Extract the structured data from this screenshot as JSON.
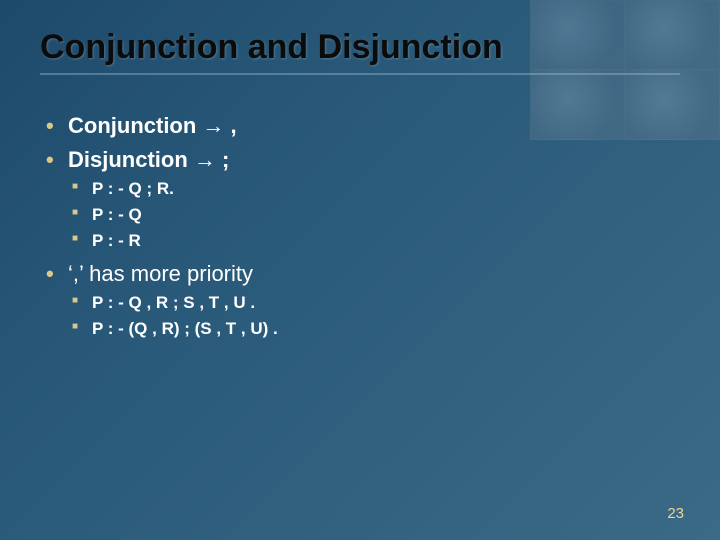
{
  "slide": {
    "title": "Conjunction and Disjunction",
    "page_number": "23",
    "colors": {
      "background_gradient_from": "#1e4a6a",
      "background_gradient_to": "#3a6a85",
      "title_color": "#0b0b0b",
      "bullet_color": "#d8c98a",
      "text_color": "#ffffff",
      "pagenum_color": "#e8d69a"
    },
    "bullets": [
      {
        "text": "Conjunction  →  ,",
        "sub": []
      },
      {
        "text": "Disjunction  →  ;",
        "sub": [
          "P : - Q ; R.",
          "P : - Q",
          "P : - R"
        ]
      },
      {
        "text": "‘,’ has more priority",
        "sub": [
          "P : - Q , R ; S , T , U .",
          "P : - (Q , R) ; (S , T , U) ."
        ]
      }
    ]
  }
}
